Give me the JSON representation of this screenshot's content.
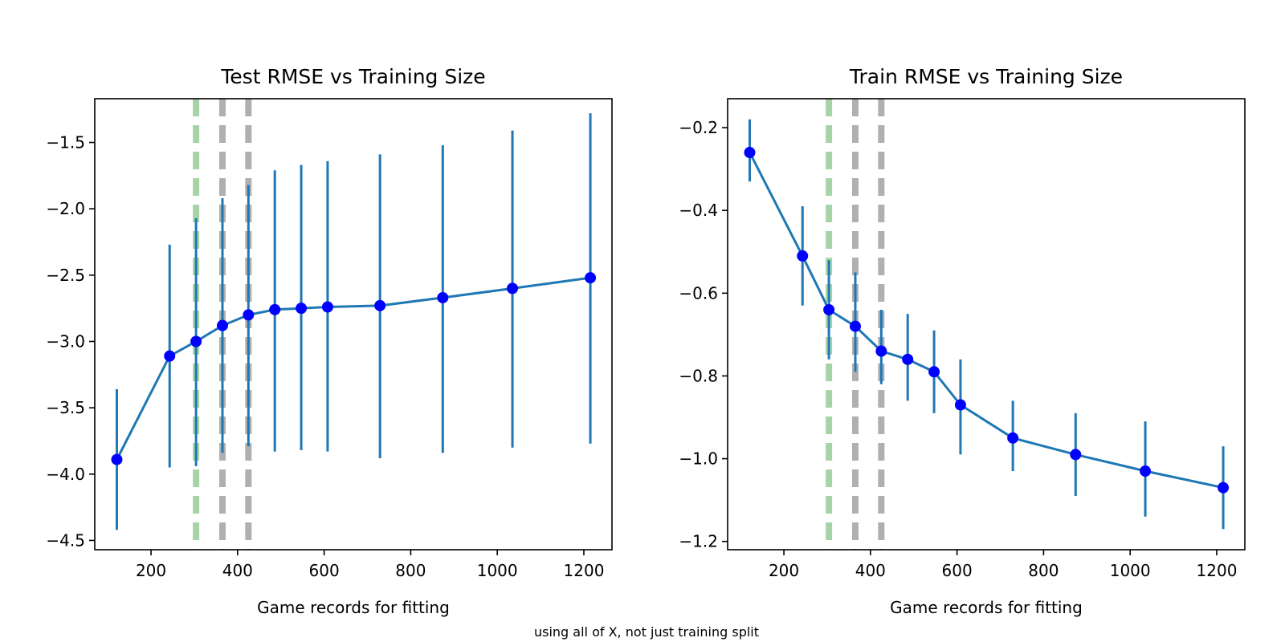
{
  "figure": {
    "caption": "using all of X, not just training split"
  },
  "colors": {
    "line": "#1f77b4",
    "marker": "#0000ff",
    "green_vline": "#a6d4a6",
    "gray_vline": "#b0b0b0"
  },
  "chart_data": [
    {
      "type": "line",
      "title": "Test RMSE vs Training Size",
      "xlabel": "Game records for fitting",
      "ylabel": "",
      "xlim": [
        70,
        1265
      ],
      "ylim": [
        -4.57,
        -1.17
      ],
      "xticks": [
        200,
        400,
        600,
        800,
        1000,
        1200
      ],
      "yticks": [
        -4.5,
        -4.0,
        -3.5,
        -3.0,
        -2.5,
        -2.0,
        -1.5
      ],
      "grid": false,
      "series": [
        {
          "x": [
            121,
            243,
            304,
            365,
            425,
            486,
            547,
            608,
            729,
            874,
            1035,
            1215
          ],
          "y": [
            -3.89,
            -3.11,
            -3.0,
            -2.88,
            -2.8,
            -2.76,
            -2.75,
            -2.74,
            -2.73,
            -2.67,
            -2.6,
            -2.52
          ],
          "err_low": [
            -4.42,
            -3.95,
            -3.94,
            -3.84,
            -3.79,
            -3.83,
            -3.82,
            -3.83,
            -3.88,
            -3.84,
            -3.8,
            -3.77
          ],
          "err_high": [
            -3.36,
            -2.27,
            -2.07,
            -1.92,
            -1.82,
            -1.71,
            -1.67,
            -1.64,
            -1.59,
            -1.52,
            -1.41,
            -1.28
          ]
        }
      ],
      "vlines": [
        {
          "x": 304,
          "color": "green"
        },
        {
          "x": 365,
          "color": "gray"
        },
        {
          "x": 425,
          "color": "gray"
        }
      ]
    },
    {
      "type": "line",
      "title": "Train RMSE vs Training Size",
      "xlabel": "Game records for fitting",
      "ylabel": "",
      "xlim": [
        70,
        1265
      ],
      "ylim": [
        -1.22,
        -0.13
      ],
      "xticks": [
        200,
        400,
        600,
        800,
        1000,
        1200
      ],
      "yticks": [
        -1.2,
        -1.0,
        -0.8,
        -0.6,
        -0.4,
        -0.2
      ],
      "grid": false,
      "series": [
        {
          "x": [
            121,
            243,
            304,
            365,
            425,
            486,
            547,
            608,
            729,
            874,
            1035,
            1215
          ],
          "y": [
            -0.26,
            -0.51,
            -0.64,
            -0.68,
            -0.74,
            -0.76,
            -0.79,
            -0.87,
            -0.95,
            -0.99,
            -1.03,
            -1.07
          ],
          "err_low": [
            -0.33,
            -0.63,
            -0.76,
            -0.79,
            -0.82,
            -0.86,
            -0.89,
            -0.99,
            -1.03,
            -1.09,
            -1.14,
            -1.17
          ],
          "err_high": [
            -0.18,
            -0.39,
            -0.52,
            -0.55,
            -0.64,
            -0.65,
            -0.69,
            -0.76,
            -0.86,
            -0.89,
            -0.91,
            -0.97
          ]
        }
      ],
      "vlines": [
        {
          "x": 304,
          "color": "green"
        },
        {
          "x": 365,
          "color": "gray"
        },
        {
          "x": 425,
          "color": "gray"
        }
      ]
    }
  ]
}
